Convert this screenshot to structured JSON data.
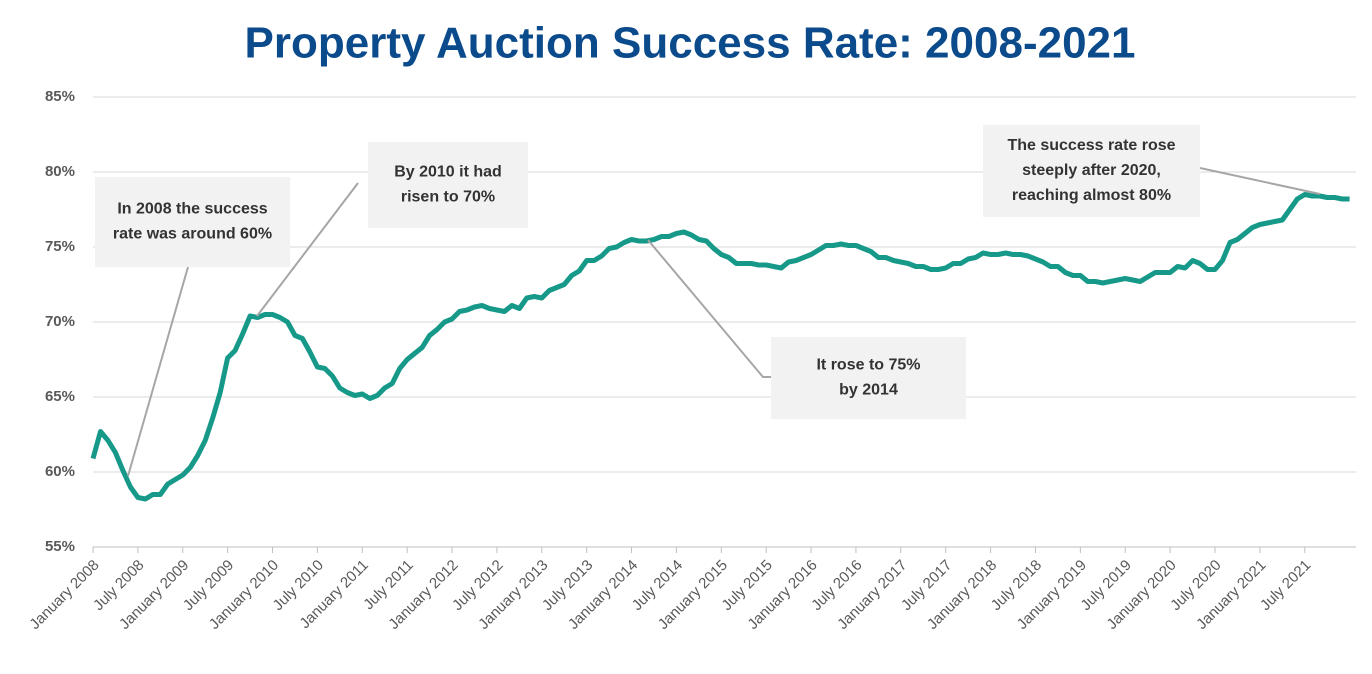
{
  "chart_data": {
    "type": "line",
    "title": "Property Auction Success Rate: 2008-2021",
    "categories": [
      "January 2008",
      null,
      null,
      null,
      null,
      null,
      "July 2008",
      null,
      null,
      null,
      null,
      null,
      "January 2009",
      null,
      null,
      null,
      null,
      null,
      "July 2009",
      null,
      null,
      null,
      null,
      null,
      "January 2010",
      null,
      null,
      null,
      null,
      null,
      "July 2010",
      null,
      null,
      null,
      null,
      null,
      "January 2011",
      null,
      null,
      null,
      null,
      null,
      "July 2011",
      null,
      null,
      null,
      null,
      null,
      "January 2012",
      null,
      null,
      null,
      null,
      null,
      "July 2012",
      null,
      null,
      null,
      null,
      null,
      "January 2013",
      null,
      null,
      null,
      null,
      null,
      "July 2013",
      null,
      null,
      null,
      null,
      null,
      "January 2014",
      null,
      null,
      null,
      null,
      null,
      "July 2014",
      null,
      null,
      null,
      null,
      null,
      "January 2015",
      null,
      null,
      null,
      null,
      null,
      "July 2015",
      null,
      null,
      null,
      null,
      null,
      "January 2016",
      null,
      null,
      null,
      null,
      null,
      "July 2016",
      null,
      null,
      null,
      null,
      null,
      "January 2017",
      null,
      null,
      null,
      null,
      null,
      "July 2017",
      null,
      null,
      null,
      null,
      null,
      "January 2018",
      null,
      null,
      null,
      null,
      null,
      "July 2018",
      null,
      null,
      null,
      null,
      null,
      "January 2019",
      null,
      null,
      null,
      null,
      null,
      "July 2019",
      null,
      null,
      null,
      null,
      null,
      "January 2020",
      null,
      null,
      null,
      null,
      null,
      "July 2020",
      null,
      null,
      null,
      null,
      null,
      "January 2021",
      null,
      null,
      null,
      null,
      null,
      "July 2021",
      null,
      null,
      null,
      null,
      null,
      null
    ],
    "series": [
      {
        "name": "Success rate",
        "color": "#17998a",
        "values": [
          60.9,
          62.7,
          62.1,
          61.3,
          60.1,
          59.0,
          58.3,
          58.2,
          58.5,
          58.5,
          59.2,
          59.5,
          59.8,
          60.3,
          61.1,
          62.1,
          63.6,
          65.3,
          67.6,
          68.1,
          69.2,
          70.4,
          70.3,
          70.5,
          70.5,
          70.3,
          70.0,
          69.1,
          68.9,
          68.0,
          67.0,
          66.9,
          66.4,
          65.6,
          65.3,
          65.1,
          65.2,
          64.9,
          65.1,
          65.6,
          65.9,
          66.9,
          67.5,
          67.9,
          68.3,
          69.1,
          69.5,
          70.0,
          70.2,
          70.7,
          70.8,
          71.0,
          71.1,
          70.9,
          70.8,
          70.7,
          71.1,
          70.9,
          71.6,
          71.7,
          71.6,
          72.1,
          72.3,
          72.5,
          73.1,
          73.4,
          74.1,
          74.1,
          74.4,
          74.9,
          75.0,
          75.3,
          75.5,
          75.4,
          75.4,
          75.5,
          75.7,
          75.7,
          75.9,
          76.0,
          75.8,
          75.5,
          75.4,
          74.9,
          74.5,
          74.3,
          73.9,
          73.9,
          73.9,
          73.8,
          73.8,
          73.7,
          73.6,
          74.0,
          74.1,
          74.3,
          74.5,
          74.8,
          75.1,
          75.1,
          75.2,
          75.1,
          75.1,
          74.9,
          74.7,
          74.3,
          74.3,
          74.1,
          74.0,
          73.9,
          73.7,
          73.7,
          73.5,
          73.5,
          73.6,
          73.9,
          73.9,
          74.2,
          74.3,
          74.6,
          74.5,
          74.5,
          74.6,
          74.5,
          74.5,
          74.4,
          74.2,
          74.0,
          73.7,
          73.7,
          73.3,
          73.1,
          73.1,
          72.7,
          72.7,
          72.6,
          72.7,
          72.8,
          72.9,
          72.8,
          72.7,
          73.0,
          73.3,
          73.3,
          73.3,
          73.7,
          73.6,
          74.1,
          73.9,
          73.5,
          73.5,
          74.1,
          75.3,
          75.5,
          75.9,
          76.3,
          76.5,
          76.6,
          76.7,
          76.8,
          77.5,
          78.2,
          78.5,
          78.4,
          78.4,
          78.3,
          78.3,
          78.2,
          78.2
        ]
      }
    ],
    "ylim": [
      55,
      85
    ],
    "yticks": [
      {
        "value": 55,
        "label": "55%"
      },
      {
        "value": 60,
        "label": "60%"
      },
      {
        "value": 65,
        "label": "65%"
      },
      {
        "value": 70,
        "label": "70%"
      },
      {
        "value": 75,
        "label": "75%"
      },
      {
        "value": 80,
        "label": "80%"
      },
      {
        "value": 85,
        "label": "85%"
      }
    ],
    "grid": true,
    "annotations": [
      {
        "lines": [
          "In 2008 the success",
          "rate was around 60%"
        ]
      },
      {
        "lines": [
          "By 2010 it had",
          "risen to 70%"
        ]
      },
      {
        "lines": [
          "It rose to 75%",
          "by 2014"
        ]
      },
      {
        "lines": [
          "The success rate rose",
          "steeply after 2020,",
          "reaching almost 80%"
        ]
      }
    ]
  }
}
